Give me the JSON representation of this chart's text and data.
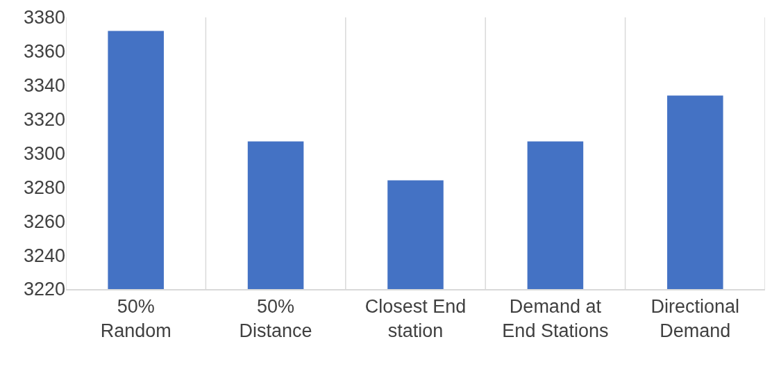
{
  "chart_data": {
    "type": "bar",
    "categories": [
      "50%\nRandom",
      "50%\nDistance",
      "Closest End\nstation",
      "Demand at\nEnd Stations",
      "Directional\nDemand"
    ],
    "values": [
      3372,
      3307,
      3284,
      3307,
      3334
    ],
    "color": "#4472c4",
    "ylim": [
      3220,
      3380
    ],
    "yticks": [
      3220,
      3240,
      3260,
      3280,
      3300,
      3320,
      3340,
      3360,
      3380
    ],
    "grid": "x"
  }
}
